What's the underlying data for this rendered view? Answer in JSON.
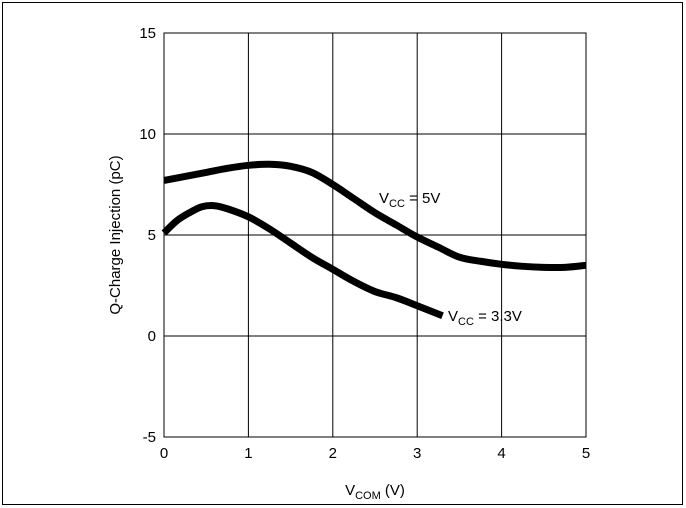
{
  "chart_data": {
    "type": "line",
    "title": "",
    "xlabel": {
      "main": "V",
      "sub": "COM",
      "rest": " (V)"
    },
    "ylabel": "Q-Charge Injection (pC)",
    "xlim": [
      0,
      5
    ],
    "ylim": [
      -5,
      15
    ],
    "xticks": [
      "0",
      "1",
      "2",
      "3",
      "4",
      "5"
    ],
    "yticks": [
      "-5",
      "0",
      "5",
      "10",
      "15"
    ],
    "grid": true,
    "series": [
      {
        "name": "VCC = 5V",
        "label": {
          "main": "V",
          "sub": "CC",
          "rest": " = 5V"
        },
        "color": "#000000",
        "x": [
          0,
          0.25,
          0.5,
          0.75,
          1.0,
          1.25,
          1.5,
          1.75,
          2.0,
          2.25,
          2.5,
          2.75,
          3.0,
          3.25,
          3.5,
          3.75,
          4.0,
          4.25,
          4.5,
          4.75,
          5.0
        ],
        "y": [
          7.7,
          7.9,
          8.1,
          8.3,
          8.45,
          8.5,
          8.4,
          8.1,
          7.5,
          6.8,
          6.1,
          5.5,
          4.9,
          4.4,
          3.9,
          3.7,
          3.55,
          3.45,
          3.4,
          3.4,
          3.5
        ]
      },
      {
        "name": "VCC = 3.3V",
        "label": {
          "main": "V",
          "sub": "CC",
          "rest": " = 3.3V"
        },
        "color": "#000000",
        "x": [
          0,
          0.15,
          0.3,
          0.45,
          0.6,
          0.75,
          1.0,
          1.25,
          1.5,
          1.75,
          2.0,
          2.25,
          2.5,
          2.75,
          3.0,
          3.3
        ],
        "y": [
          5.1,
          5.7,
          6.1,
          6.4,
          6.45,
          6.3,
          5.9,
          5.3,
          4.6,
          3.9,
          3.3,
          2.7,
          2.2,
          1.9,
          1.5,
          1.0
        ]
      }
    ]
  }
}
